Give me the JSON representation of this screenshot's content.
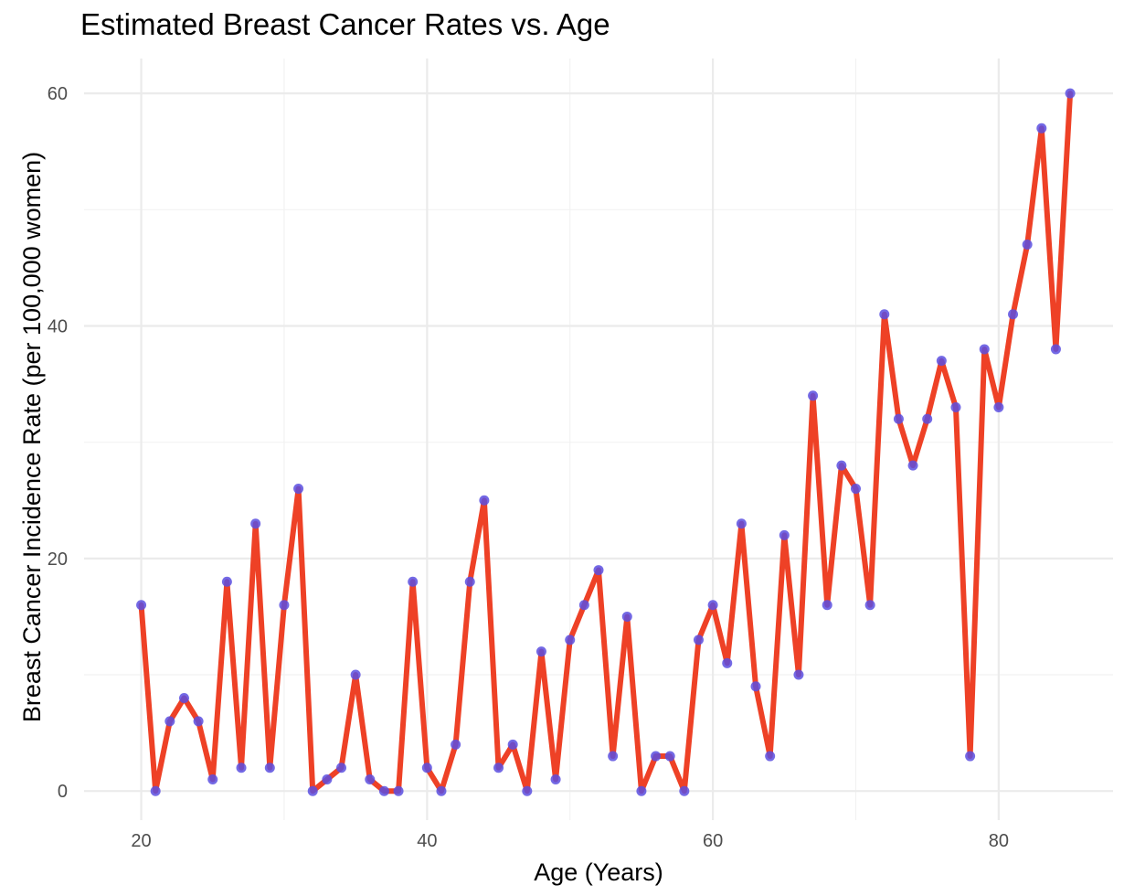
{
  "chart_data": {
    "type": "line",
    "title": "Estimated Breast Cancer Rates vs. Age",
    "xlabel": "Age (Years)",
    "ylabel": "Breast Cancer Incidence Rate (per 100,000 women)",
    "xlim": [
      16,
      88
    ],
    "ylim": [
      -2.5,
      63
    ],
    "x_ticks": [
      20,
      40,
      60,
      80
    ],
    "y_ticks": [
      0,
      20,
      40,
      60
    ],
    "x_tick_labels": [
      "20",
      "40",
      "60",
      "80"
    ],
    "y_tick_labels": [
      "0",
      "20",
      "40",
      "60"
    ],
    "grid": true,
    "line_color": "#ee4126",
    "point_color": "#5a4fe0",
    "series": [
      {
        "x": [
          20,
          21,
          22,
          23,
          24,
          25,
          26,
          27,
          28,
          29,
          30,
          31,
          32,
          33,
          34,
          35,
          36,
          37,
          38,
          39,
          40,
          41,
          42,
          43,
          44,
          45,
          46,
          47,
          48,
          49,
          50,
          51,
          52,
          53,
          54,
          55,
          56,
          57,
          58,
          59,
          60,
          61,
          62,
          63,
          64,
          65,
          66,
          67,
          68,
          69,
          70,
          71,
          72,
          73,
          74,
          75,
          76,
          77,
          78,
          79,
          80,
          81,
          82,
          83,
          84,
          85
        ],
        "values": [
          16,
          0,
          6,
          8,
          6,
          1,
          18,
          2,
          23,
          2,
          16,
          26,
          0,
          1,
          2,
          10,
          1,
          0,
          0,
          18,
          2,
          0,
          4,
          18,
          25,
          2,
          4,
          0,
          12,
          1,
          13,
          16,
          19,
          3,
          15,
          0,
          3,
          3,
          0,
          13,
          16,
          11,
          23,
          9,
          3,
          22,
          10,
          34,
          16,
          28,
          26,
          16,
          41,
          32,
          28,
          32,
          37,
          33,
          3,
          38,
          33,
          41,
          47,
          57,
          38,
          60
        ]
      }
    ]
  }
}
